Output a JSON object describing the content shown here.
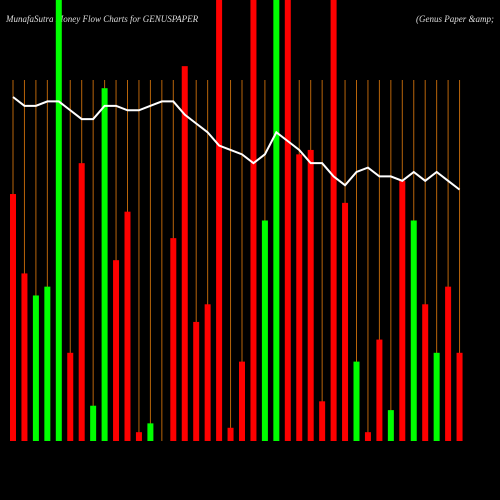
{
  "chart_data": {
    "type": "bar",
    "title": "MunafaSutra  Money Flow  Charts for GENUSPAPER",
    "subtitle": "(Genus Paper &amp;",
    "values": [
      56,
      38,
      33,
      35,
      100,
      20,
      63,
      8,
      80,
      41,
      52,
      2,
      4,
      0,
      46,
      85,
      27,
      31,
      100,
      3,
      18,
      100,
      50,
      100,
      100,
      65,
      66,
      9,
      100,
      54,
      18,
      2,
      23,
      7,
      59,
      50,
      31,
      20,
      35,
      20
    ],
    "colors": [
      "red",
      "red",
      "lime",
      "lime",
      "lime",
      "red",
      "red",
      "lime",
      "lime",
      "red",
      "red",
      "red",
      "lime",
      "red",
      "red",
      "red",
      "red",
      "red",
      "red",
      "red",
      "red",
      "red",
      "lime",
      "lime",
      "red",
      "red",
      "red",
      "red",
      "red",
      "red",
      "lime",
      "red",
      "red",
      "lime",
      "red",
      "lime",
      "red",
      "lime",
      "red",
      "red"
    ],
    "line": {
      "color": "white",
      "values": [
        78,
        76,
        76,
        77,
        77,
        75,
        73,
        73,
        76,
        76,
        75,
        75,
        76,
        77,
        77,
        74,
        72,
        70,
        67,
        66,
        65,
        63,
        65,
        70,
        68,
        66,
        63,
        63,
        60,
        58,
        61,
        62,
        60,
        60,
        59,
        61,
        59,
        61,
        59,
        57
      ]
    },
    "ylim": [
      0,
      100
    ],
    "grid": true
  }
}
